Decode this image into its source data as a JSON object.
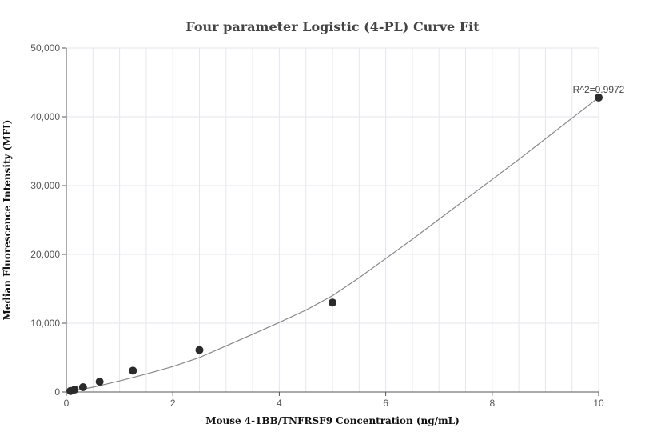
{
  "chart_data": {
    "type": "scatter",
    "title": "Four parameter Logistic (4-PL) Curve Fit",
    "xlabel": "Mouse 4-1BB/TNFRSF9 Concentration (ng/mL)",
    "ylabel": "Median Fluorescence Intensity (MFI)",
    "xlim": [
      0,
      10
    ],
    "ylim": [
      0,
      50000
    ],
    "x_ticks": [
      0,
      2,
      4,
      6,
      8,
      10
    ],
    "x_tick_labels": [
      "0",
      "2",
      "4",
      "6",
      "8",
      "10"
    ],
    "y_ticks": [
      0,
      10000,
      20000,
      30000,
      40000,
      50000
    ],
    "y_tick_labels": [
      "0",
      "10,000",
      "20,000",
      "30,000",
      "40,000",
      "50,000"
    ],
    "grid": true,
    "points": [
      {
        "x": 0.078,
        "y": 150
      },
      {
        "x": 0.156,
        "y": 350
      },
      {
        "x": 0.313,
        "y": 700
      },
      {
        "x": 0.625,
        "y": 1500
      },
      {
        "x": 1.25,
        "y": 3100
      },
      {
        "x": 2.5,
        "y": 6100
      },
      {
        "x": 5,
        "y": 13000
      },
      {
        "x": 10,
        "y": 42800
      }
    ],
    "fit_curve": {
      "x": [
        0,
        0.5,
        1,
        1.5,
        2,
        2.5,
        3,
        3.5,
        4,
        4.5,
        5,
        5.5,
        6,
        6.5,
        7,
        7.5,
        8,
        8.5,
        9,
        9.5,
        10
      ],
      "y": [
        0,
        700,
        1600,
        2600,
        3700,
        5000,
        6700,
        8400,
        10100,
        11900,
        14000,
        16600,
        19400,
        22200,
        25100,
        28000,
        30900,
        33800,
        36800,
        39800,
        42800
      ]
    },
    "annotation": "R^2=0.9972",
    "colors": {
      "points": "#2b2b2b",
      "curve": "#888888",
      "grid": "#e6e6ee",
      "axis": "#555555"
    }
  }
}
